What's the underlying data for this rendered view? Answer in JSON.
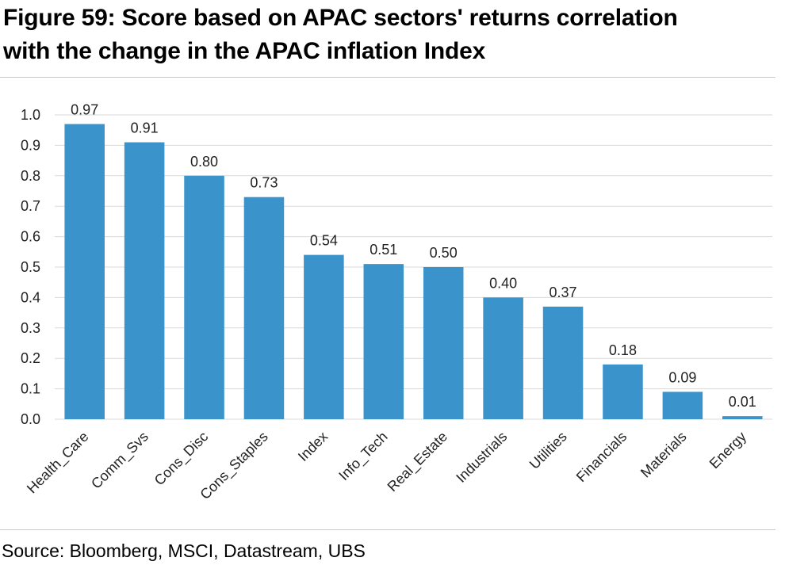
{
  "title_line1": "Figure 59: Score based on APAC sectors' returns correlation",
  "title_line2": "with the change in the APAC inflation Index",
  "source": "Source: Bloomberg, MSCI, Datastream, UBS",
  "colors": {
    "bar": "#3a93cb",
    "grid": "#d9d9d9",
    "rule": "#c8c8c8"
  },
  "chart_data": {
    "type": "bar",
    "categories": [
      "Health_Care",
      "Comm_Svs",
      "Cons_Disc",
      "Cons_Staples",
      "Index",
      "Info_Tech",
      "Real_Estate",
      "Industrials",
      "Utilities",
      "Financials",
      "Materials",
      "Energy"
    ],
    "values": [
      0.97,
      0.91,
      0.8,
      0.73,
      0.54,
      0.51,
      0.5,
      0.4,
      0.37,
      0.18,
      0.09,
      0.01
    ],
    "data_labels": [
      "0.97",
      "0.91",
      "0.80",
      "0.73",
      "0.54",
      "0.51",
      "0.50",
      "0.40",
      "0.37",
      "0.18",
      "0.09",
      "0.01"
    ],
    "yticks": [
      "0.0",
      "0.1",
      "0.2",
      "0.3",
      "0.4",
      "0.5",
      "0.6",
      "0.7",
      "0.8",
      "0.9",
      "1.0"
    ],
    "ylim": [
      0,
      1.0
    ],
    "grid": true,
    "xlabel": "",
    "ylabel": ""
  }
}
